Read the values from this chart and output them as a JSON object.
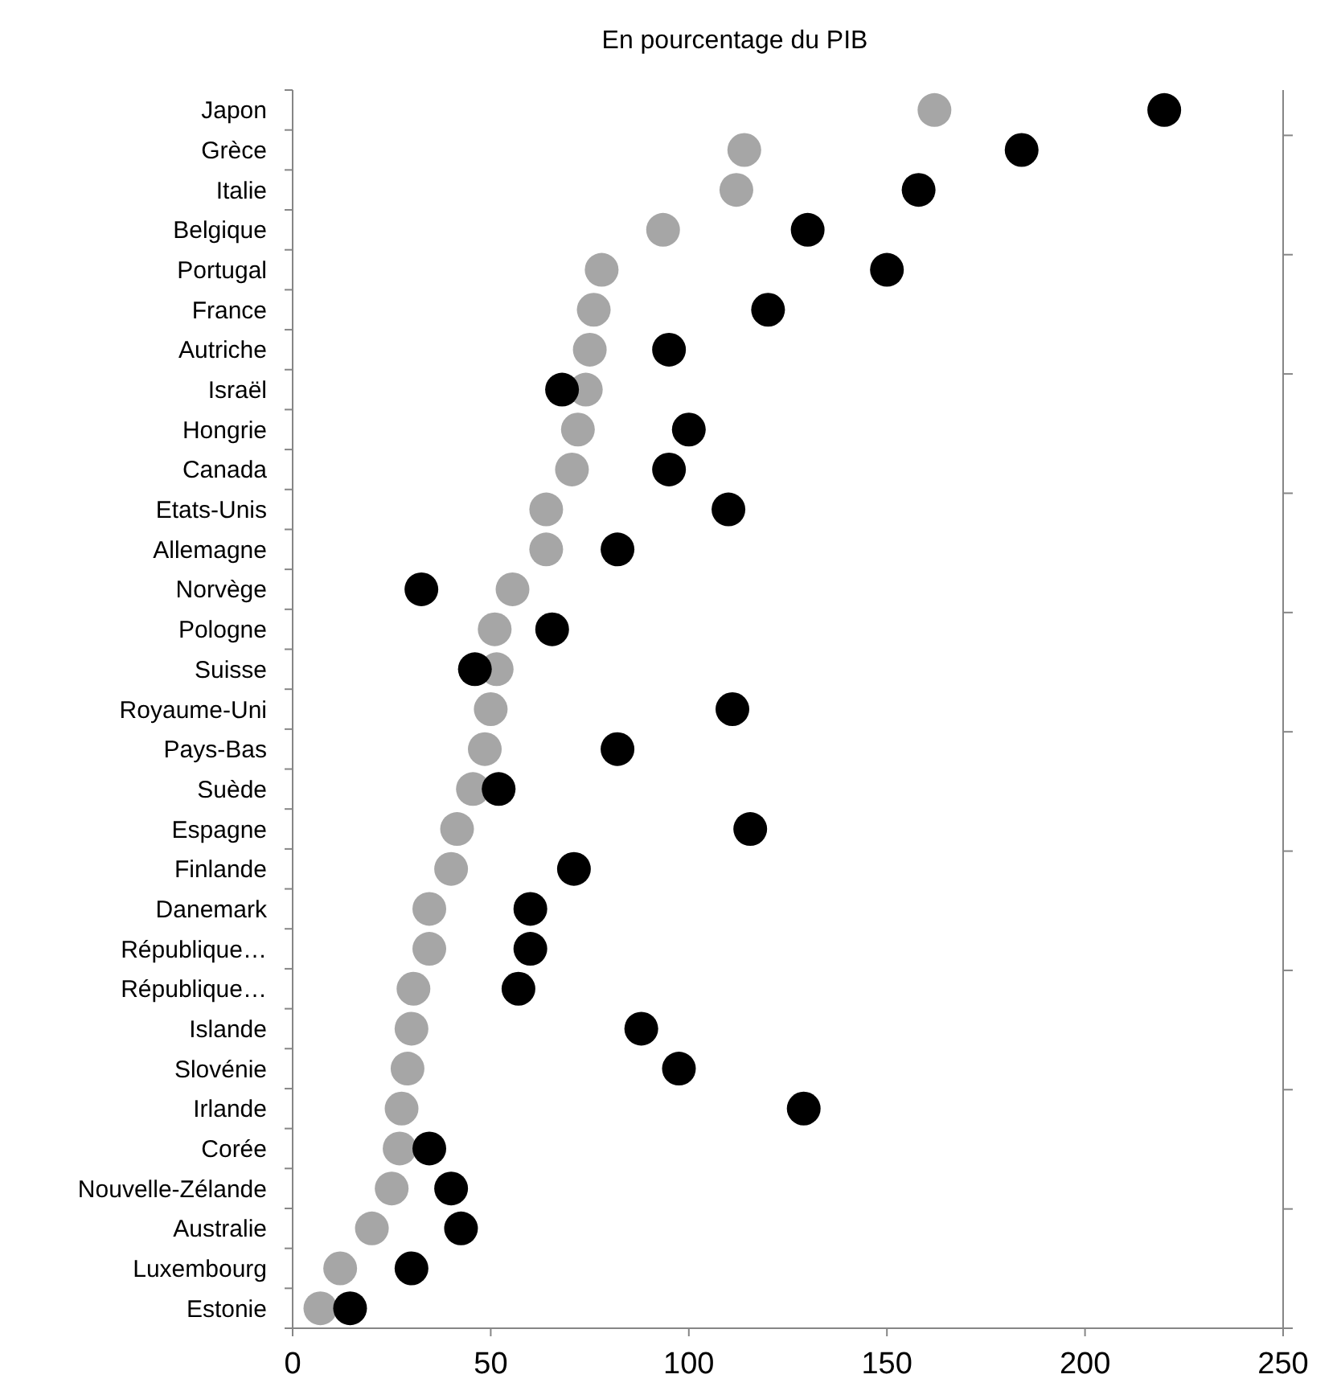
{
  "chart_data": {
    "type": "scatter",
    "title": "En pourcentage du PIB",
    "orientation": "horizontal",
    "categories": [
      "Japon",
      "Grèce",
      "Italie",
      "Belgique",
      "Portugal",
      "France",
      "Autriche",
      "Israël",
      "Hongrie",
      "Canada",
      "Etats-Unis",
      "Allemagne",
      "Norvège",
      "Pologne",
      "Suisse",
      "Royaume-Uni",
      "Pays-Bas",
      "Suède",
      "Espagne",
      "Finlande",
      "Danemark",
      "République…",
      "République…",
      "Islande",
      "Slovénie",
      "Irlande",
      "Corée",
      "Nouvelle-Zélande",
      "Australie",
      "Luxembourg",
      "Estonie"
    ],
    "series": [
      {
        "color": "#a6a6a6",
        "values": [
          162,
          114,
          112,
          93.5,
          78,
          76,
          75,
          74,
          72,
          70.5,
          64,
          64,
          55.5,
          51,
          51.5,
          50,
          48.5,
          45.5,
          41.5,
          40,
          34.5,
          34.5,
          30.5,
          30,
          29,
          27.5,
          27,
          25,
          20,
          12,
          7
        ]
      },
      {
        "color": "#000000",
        "values": [
          220,
          184,
          158,
          130,
          150,
          120,
          95,
          68,
          100,
          95,
          110,
          82,
          32.5,
          65.5,
          46,
          111,
          82,
          52,
          115.5,
          71,
          60,
          60,
          57,
          88,
          97.5,
          129,
          34.5,
          40,
          42.5,
          30,
          14.5
        ]
      }
    ],
    "xlim": [
      0,
      250
    ],
    "xticks": [
      0,
      50,
      100,
      150,
      200,
      250
    ],
    "marker": "circle",
    "grid": false
  }
}
